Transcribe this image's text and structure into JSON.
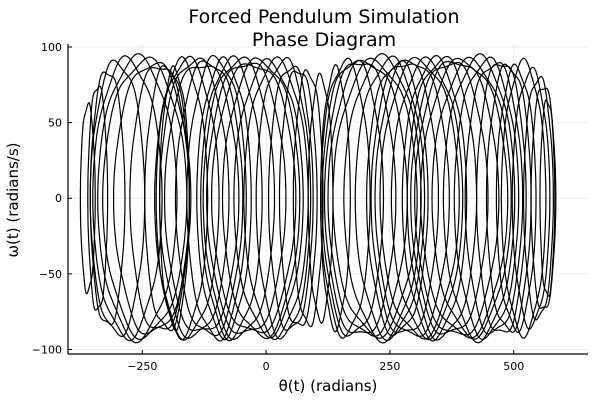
{
  "chart_data": {
    "type": "line",
    "title": "Forced Pendulum Simulation",
    "subtitle": "Phase Diagram",
    "xlabel": "θ(t) (radians)",
    "ylabel": "ω(t) (radians/s)",
    "xlim": [
      -400,
      650
    ],
    "ylim": [
      -103,
      102
    ],
    "xticks": [
      {
        "value": -250,
        "label": "−250"
      },
      {
        "value": 0,
        "label": "0"
      },
      {
        "value": 250,
        "label": "250"
      },
      {
        "value": 500,
        "label": "500"
      }
    ],
    "yticks": [
      {
        "value": 100,
        "label": "100"
      },
      {
        "value": 50,
        "label": "50"
      },
      {
        "value": 0,
        "label": "0"
      },
      {
        "value": -50,
        "label": "−50"
      },
      {
        "value": -100,
        "label": "−100"
      }
    ],
    "grid": true,
    "legend": "none",
    "line_color": "#000000",
    "series": [
      {
        "loops": [
          {
            "center": -360,
            "rx": 15,
            "ry": 62
          },
          {
            "center": -340,
            "rx": 20,
            "ry": 75
          },
          {
            "center": -320,
            "rx": 35,
            "ry": 85
          },
          {
            "center": -300,
            "rx": 55,
            "ry": 90
          },
          {
            "center": -280,
            "rx": 70,
            "ry": 91
          },
          {
            "center": -260,
            "rx": 80,
            "ry": 92
          },
          {
            "center": -245,
            "rx": 85,
            "ry": 91
          },
          {
            "center": -230,
            "rx": 78,
            "ry": 90
          },
          {
            "center": -215,
            "rx": 60,
            "ry": 89
          },
          {
            "center": -200,
            "rx": 45,
            "ry": 87
          },
          {
            "center": -185,
            "rx": 30,
            "ry": 85
          },
          {
            "center": -170,
            "rx": 52,
            "ry": 90
          },
          {
            "center": -160,
            "rx": 65,
            "ry": 91
          },
          {
            "center": -145,
            "rx": 70,
            "ry": 92
          },
          {
            "center": -130,
            "rx": 75,
            "ry": 90
          },
          {
            "center": -115,
            "rx": 68,
            "ry": 91
          },
          {
            "center": -100,
            "rx": 60,
            "ry": 92
          },
          {
            "center": -85,
            "rx": 55,
            "ry": 90
          },
          {
            "center": -70,
            "rx": 62,
            "ry": 91
          },
          {
            "center": -55,
            "rx": 72,
            "ry": 92
          },
          {
            "center": -40,
            "rx": 80,
            "ry": 91
          },
          {
            "center": -25,
            "rx": 85,
            "ry": 90
          },
          {
            "center": -10,
            "rx": 78,
            "ry": 91
          },
          {
            "center": 5,
            "rx": 70,
            "ry": 89
          },
          {
            "center": 20,
            "rx": 65,
            "ry": 90
          },
          {
            "center": 35,
            "rx": 55,
            "ry": 91
          },
          {
            "center": 50,
            "rx": 45,
            "ry": 88
          },
          {
            "center": 65,
            "rx": 38,
            "ry": 86
          },
          {
            "center": 85,
            "rx": 30,
            "ry": 84
          },
          {
            "center": 110,
            "rx": 25,
            "ry": 80
          },
          {
            "center": 140,
            "rx": 30,
            "ry": 85
          },
          {
            "center": 160,
            "rx": 50,
            "ry": 90
          },
          {
            "center": 175,
            "rx": 62,
            "ry": 91
          },
          {
            "center": 190,
            "rx": 72,
            "ry": 92
          },
          {
            "center": 205,
            "rx": 80,
            "ry": 91
          },
          {
            "center": 220,
            "rx": 85,
            "ry": 90
          },
          {
            "center": 235,
            "rx": 78,
            "ry": 92
          },
          {
            "center": 250,
            "rx": 70,
            "ry": 91
          },
          {
            "center": 265,
            "rx": 62,
            "ry": 90
          },
          {
            "center": 280,
            "rx": 68,
            "ry": 91
          },
          {
            "center": 295,
            "rx": 75,
            "ry": 92
          },
          {
            "center": 310,
            "rx": 80,
            "ry": 91
          },
          {
            "center": 325,
            "rx": 72,
            "ry": 90
          },
          {
            "center": 340,
            "rx": 65,
            "ry": 91
          },
          {
            "center": 355,
            "rx": 70,
            "ry": 92
          },
          {
            "center": 370,
            "rx": 78,
            "ry": 91
          },
          {
            "center": 385,
            "rx": 85,
            "ry": 92
          },
          {
            "center": 400,
            "rx": 88,
            "ry": 91
          },
          {
            "center": 415,
            "rx": 80,
            "ry": 90
          },
          {
            "center": 430,
            "rx": 72,
            "ry": 92
          },
          {
            "center": 445,
            "rx": 65,
            "ry": 91
          },
          {
            "center": 460,
            "rx": 58,
            "ry": 90
          },
          {
            "center": 475,
            "rx": 50,
            "ry": 91
          },
          {
            "center": 490,
            "rx": 45,
            "ry": 88
          },
          {
            "center": 505,
            "rx": 40,
            "ry": 86
          },
          {
            "center": 520,
            "rx": 45,
            "ry": 89
          },
          {
            "center": 535,
            "rx": 38,
            "ry": 84
          },
          {
            "center": 550,
            "rx": 30,
            "ry": 80
          },
          {
            "center": 560,
            "rx": 25,
            "ry": 75
          },
          {
            "center": 568,
            "rx": 15,
            "ry": 65
          }
        ]
      }
    ]
  }
}
